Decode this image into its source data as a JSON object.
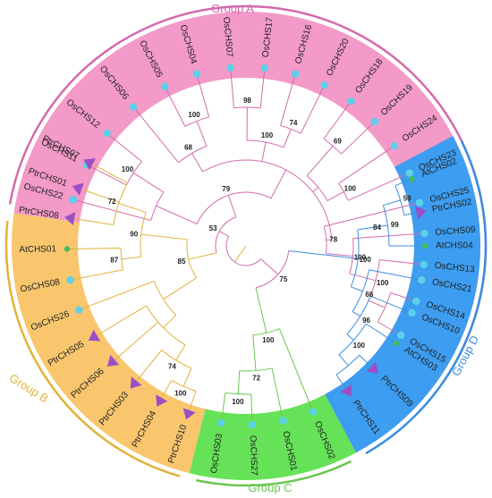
{
  "colors": {
    "group_a": "#f39ac8",
    "group_a_line": "#d46aac",
    "group_b": "#f9c66e",
    "group_b_line": "#e2b23a",
    "group_c": "#66e258",
    "group_c_line": "#6cc54f",
    "group_d": "#3d9df0",
    "group_d_line": "#3a8ee0",
    "rice_marker": "#5ad1e8",
    "poplar_marker": "#9a4fc6",
    "arabidopsis_marker": "#3ec05a"
  },
  "groups": [
    {
      "id": "A",
      "label": "Group A",
      "color_key": "group_a"
    },
    {
      "id": "B",
      "label": "Group B",
      "color_key": "group_b"
    },
    {
      "id": "C",
      "label": "Group C",
      "color_key": "group_c"
    },
    {
      "id": "D",
      "label": "Group D",
      "color_key": "group_d"
    }
  ],
  "leaves": [
    {
      "name": "OsCHS22",
      "group": "A",
      "species": "rice"
    },
    {
      "name": "OsCHS11",
      "group": "A",
      "species": "rice"
    },
    {
      "name": "OsCHS12",
      "group": "A",
      "species": "rice"
    },
    {
      "name": "OsCHS06",
      "group": "A",
      "species": "rice"
    },
    {
      "name": "OsCHS05",
      "group": "A",
      "species": "rice"
    },
    {
      "name": "OsCHS04",
      "group": "A",
      "species": "rice"
    },
    {
      "name": "OsCHS07",
      "group": "A",
      "species": "rice"
    },
    {
      "name": "OsCHS17",
      "group": "A",
      "species": "rice"
    },
    {
      "name": "OsCHS16",
      "group": "A",
      "species": "rice"
    },
    {
      "name": "OsCHS20",
      "group": "A",
      "species": "rice"
    },
    {
      "name": "OsCHS18",
      "group": "A",
      "species": "rice"
    },
    {
      "name": "OsCHS19",
      "group": "A",
      "species": "rice"
    },
    {
      "name": "OsCHS24",
      "group": "A",
      "species": "rice"
    },
    {
      "name": "OsCHS23",
      "group": "A",
      "species": "rice"
    },
    {
      "name": "OsCHS25",
      "group": "A",
      "species": "rice"
    },
    {
      "name": "OsCHS09",
      "group": "A",
      "species": "rice"
    },
    {
      "name": "OsCHS13",
      "group": "A",
      "species": "rice"
    },
    {
      "name": "OsCHS14",
      "group": "A",
      "species": "rice"
    },
    {
      "name": "OsCHS15",
      "group": "A",
      "species": "rice"
    },
    {
      "name": "AtCHS02",
      "group": "D",
      "species": "arabidopsis"
    },
    {
      "name": "PtrCHS02",
      "group": "D",
      "species": "poplar"
    },
    {
      "name": "AtCHS04",
      "group": "D",
      "species": "arabidopsis"
    },
    {
      "name": "OsCHS21",
      "group": "D",
      "species": "rice"
    },
    {
      "name": "OsCHS10",
      "group": "D",
      "species": "rice"
    },
    {
      "name": "AtCHS03",
      "group": "D",
      "species": "arabidopsis"
    },
    {
      "name": "PtrCHS09",
      "group": "D",
      "species": "poplar"
    },
    {
      "name": "PtrCHS11",
      "group": "D",
      "species": "poplar"
    },
    {
      "name": "OsCHS02",
      "group": "C",
      "species": "rice"
    },
    {
      "name": "OsCHS01",
      "group": "C",
      "species": "rice"
    },
    {
      "name": "OsCHS27",
      "group": "C",
      "species": "rice"
    },
    {
      "name": "OsCHS03",
      "group": "C",
      "species": "rice"
    },
    {
      "name": "PtrCHS10",
      "group": "B",
      "species": "poplar"
    },
    {
      "name": "PtrCHS04",
      "group": "B",
      "species": "poplar"
    },
    {
      "name": "PtrCHS03",
      "group": "B",
      "species": "poplar"
    },
    {
      "name": "PtrCHS06",
      "group": "B",
      "species": "poplar"
    },
    {
      "name": "PtrCHS05",
      "group": "B",
      "species": "poplar"
    },
    {
      "name": "OsCHS26",
      "group": "B",
      "species": "rice"
    },
    {
      "name": "OsCHS08",
      "group": "B",
      "species": "rice"
    },
    {
      "name": "AtCHS01",
      "group": "B",
      "species": "arabidopsis"
    },
    {
      "name": "PtrCHS08",
      "group": "B",
      "species": "poplar"
    },
    {
      "name": "PtrCHS01",
      "group": "B",
      "species": "poplar"
    },
    {
      "name": "PtrCHS07",
      "group": "B",
      "species": "poplar"
    }
  ],
  "bootstrap": [
    "98",
    "74",
    "69",
    "100",
    "68",
    "100",
    "100",
    "79",
    "78",
    "100",
    "100",
    "100",
    "53",
    "75",
    "59",
    "99",
    "84",
    "100",
    "66",
    "96",
    "100",
    "100",
    "72",
    "100",
    "72",
    "90",
    "87",
    "85",
    "74",
    "100"
  ]
}
